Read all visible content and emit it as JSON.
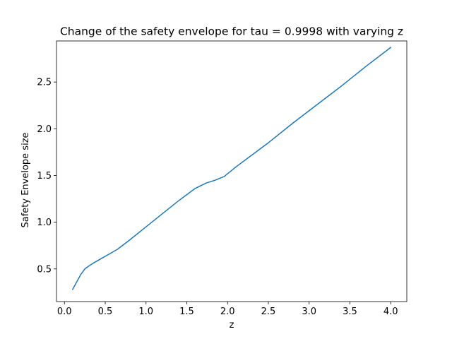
{
  "chart_data": {
    "type": "line",
    "title": "Change of the safety envelope for tau = 0.9998 with varying z",
    "xlabel": "z",
    "ylabel": "Safety Envelope size",
    "xlim": [
      -0.0975,
      4.1975
    ],
    "ylim": [
      0.1505,
      2.9395
    ],
    "grid": false,
    "x_ticks": [
      0.0,
      0.5,
      1.0,
      1.5,
      2.0,
      2.5,
      3.0,
      3.5,
      4.0
    ],
    "x_tick_labels": [
      "0.0",
      "0.5",
      "1.0",
      "1.5",
      "2.0",
      "2.5",
      "3.0",
      "3.5",
      "4.0"
    ],
    "y_ticks": [
      0.5,
      1.0,
      1.5,
      2.0,
      2.5
    ],
    "y_tick_labels": [
      "0.5",
      "1.0",
      "1.5",
      "2.0",
      "2.5"
    ],
    "series": [
      {
        "color": "#1f77b4",
        "x": [
          0.1,
          0.15,
          0.2,
          0.25,
          0.28,
          0.35,
          0.45,
          0.55,
          0.65,
          0.8,
          1.0,
          1.2,
          1.4,
          1.6,
          1.74,
          1.85,
          1.96,
          2.1,
          2.3,
          2.5,
          2.8,
          3.1,
          3.4,
          3.7,
          4.0
        ],
        "y": [
          0.28,
          0.36,
          0.44,
          0.5,
          0.52,
          0.56,
          0.61,
          0.66,
          0.71,
          0.81,
          0.95,
          1.09,
          1.23,
          1.36,
          1.42,
          1.45,
          1.49,
          1.59,
          1.72,
          1.85,
          2.06,
          2.26,
          2.46,
          2.67,
          2.87
        ]
      }
    ]
  }
}
